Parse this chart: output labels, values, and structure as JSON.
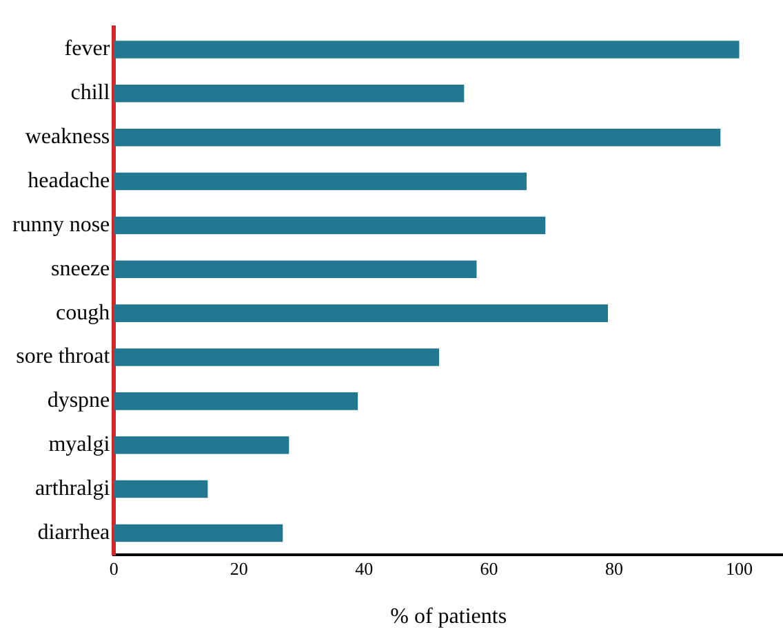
{
  "chart_data": {
    "type": "bar",
    "orientation": "horizontal",
    "xlabel": "% of patients",
    "categories": [
      "fever",
      "chill",
      "weakness",
      "headache",
      "runny nose",
      "sneeze",
      "cough",
      "sore throat",
      "dyspne",
      "myalgi",
      "arthralgi",
      "diarrhea"
    ],
    "values": [
      100,
      56,
      97,
      66,
      69,
      58,
      79,
      52,
      39,
      28,
      15,
      27
    ],
    "color": "#217890",
    "xlim": [
      0,
      107
    ],
    "xticks": [
      0,
      20,
      40,
      60,
      80,
      100
    ],
    "grid": false,
    "legend": false
  }
}
